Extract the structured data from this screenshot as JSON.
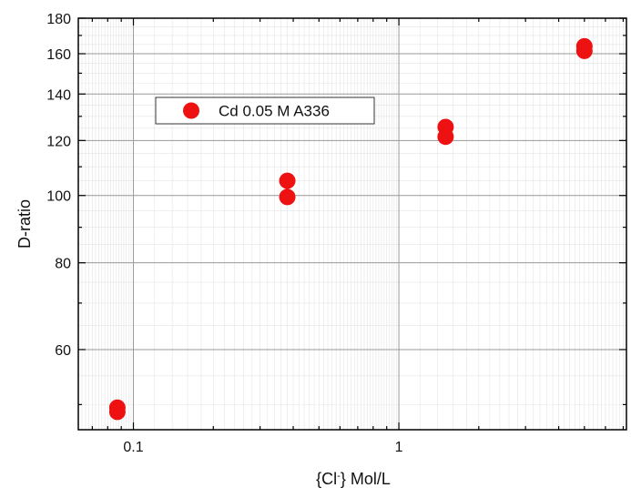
{
  "chart_data": {
    "type": "scatter",
    "xscale": "log",
    "yscale": "log",
    "xlim": [
      0.062,
      7.2
    ],
    "ylim": [
      46,
      180
    ],
    "xlabel": "{Cl} Mol/L",
    "xlabel_parts": {
      "pre": "{Cl",
      "sup": "-",
      "post": "} Mol/L"
    },
    "ylabel": "D-ratio",
    "x_major_ticks": [
      0.1,
      1
    ],
    "x_tick_labels": [
      "0.1",
      "1"
    ],
    "y_major_ticks": [
      60,
      80,
      100,
      120,
      140,
      160,
      180
    ],
    "y_tick_labels": [
      "60",
      "80",
      "100",
      "120",
      "140",
      "160",
      "180"
    ],
    "grid": true,
    "legend_position": "upper-left",
    "series": [
      {
        "name": "Cd 0.05 M A336",
        "color": "#ee1111",
        "marker": "circle",
        "points": [
          {
            "x": 0.087,
            "y": 49.5
          },
          {
            "x": 0.087,
            "y": 48.8
          },
          {
            "x": 0.38,
            "y": 105
          },
          {
            "x": 0.38,
            "y": 99.5
          },
          {
            "x": 1.5,
            "y": 125.5
          },
          {
            "x": 1.5,
            "y": 121.5
          },
          {
            "x": 5.0,
            "y": 164
          },
          {
            "x": 5.0,
            "y": 161.5
          }
        ]
      }
    ]
  }
}
